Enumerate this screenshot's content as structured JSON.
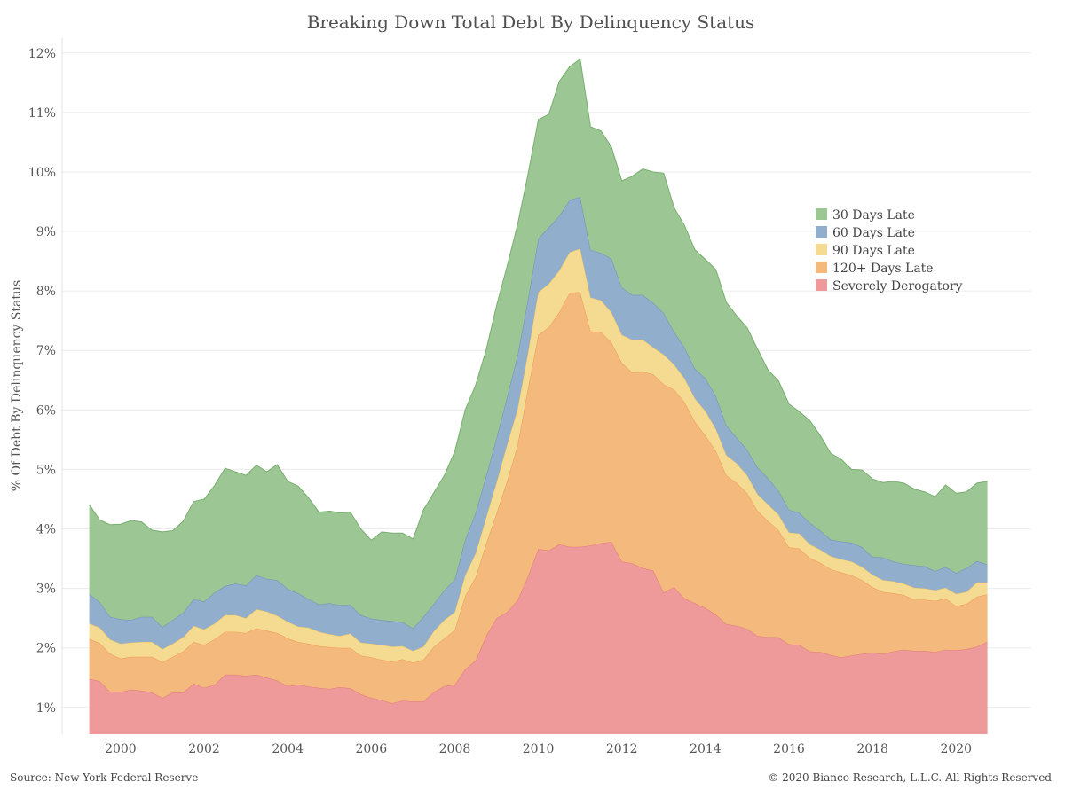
{
  "chart_data": {
    "type": "area",
    "stacked": true,
    "title": "Breaking Down Total Debt By Delinquency Status",
    "ylabel": "% Of Debt By Delinquency Status",
    "xlabel": "",
    "xlim": [
      1998.6,
      2021.8
    ],
    "ylim": [
      0.55,
      12.25
    ],
    "x_ticks": [
      2000,
      2002,
      2004,
      2006,
      2008,
      2010,
      2012,
      2014,
      2016,
      2018,
      2020
    ],
    "x_tick_labels": [
      "2000",
      "2002",
      "2004",
      "2006",
      "2008",
      "2010",
      "2012",
      "2014",
      "2016",
      "2018",
      "2020"
    ],
    "y_ticks": [
      1,
      2,
      3,
      4,
      5,
      6,
      7,
      8,
      9,
      10,
      11,
      12
    ],
    "y_tick_labels": [
      "1%",
      "2%",
      "3%",
      "4%",
      "5%",
      "6%",
      "7%",
      "8%",
      "9%",
      "10%",
      "11%",
      "12%"
    ],
    "grid": "horizontal",
    "legend_position": "right",
    "x": [
      1999.25,
      1999.5,
      1999.75,
      2000.0,
      2000.25,
      2000.5,
      2000.75,
      2001.0,
      2001.25,
      2001.5,
      2001.75,
      2002.0,
      2002.25,
      2002.5,
      2002.75,
      2003.0,
      2003.25,
      2003.5,
      2003.75,
      2004.0,
      2004.25,
      2004.5,
      2004.75,
      2005.0,
      2005.25,
      2005.5,
      2005.75,
      2006.0,
      2006.25,
      2006.5,
      2006.75,
      2007.0,
      2007.25,
      2007.5,
      2007.75,
      2008.0,
      2008.25,
      2008.5,
      2008.75,
      2009.0,
      2009.25,
      2009.5,
      2009.75,
      2010.0,
      2010.25,
      2010.5,
      2010.75,
      2011.0,
      2011.25,
      2011.5,
      2011.75,
      2012.0,
      2012.25,
      2012.5,
      2012.75,
      2013.0,
      2013.25,
      2013.5,
      2013.75,
      2014.0,
      2014.25,
      2014.5,
      2014.75,
      2015.0,
      2015.25,
      2015.5,
      2015.75,
      2016.0,
      2016.25,
      2016.5,
      2016.75,
      2017.0,
      2017.25,
      2017.5,
      2017.75,
      2018.0,
      2018.25,
      2018.5,
      2018.75,
      2019.0,
      2019.25,
      2019.5,
      2019.75,
      2020.0,
      2020.25,
      2020.5,
      2020.75
    ],
    "series": [
      {
        "name": "Severely Derogatory",
        "color": "#ee9a9b",
        "line": "#e07a7c",
        "values": [
          1.48,
          1.44,
          1.26,
          1.26,
          1.3,
          1.28,
          1.25,
          1.16,
          1.25,
          1.25,
          1.4,
          1.33,
          1.38,
          1.55,
          1.55,
          1.53,
          1.55,
          1.5,
          1.45,
          1.36,
          1.38,
          1.35,
          1.33,
          1.31,
          1.34,
          1.32,
          1.22,
          1.16,
          1.12,
          1.07,
          1.11,
          1.1,
          1.1,
          1.26,
          1.36,
          1.38,
          1.64,
          1.79,
          2.2,
          2.5,
          2.6,
          2.8,
          3.2,
          3.66,
          3.64,
          3.74,
          3.7,
          3.7,
          3.72,
          3.76,
          3.78,
          3.45,
          3.42,
          3.34,
          3.3,
          2.93,
          3.02,
          2.83,
          2.75,
          2.67,
          2.56,
          2.4,
          2.37,
          2.32,
          2.2,
          2.18,
          2.18,
          2.06,
          2.05,
          1.94,
          1.93,
          1.88,
          1.84,
          1.87,
          1.9,
          1.92,
          1.9,
          1.94,
          1.97,
          1.95,
          1.95,
          1.93,
          1.97,
          1.96,
          1.98,
          2.02,
          2.1
        ]
      },
      {
        "name": "120+ Days Late",
        "color": "#f4b97c",
        "line": "#ee9a50",
        "values": [
          0.67,
          0.64,
          0.64,
          0.56,
          0.55,
          0.57,
          0.6,
          0.6,
          0.6,
          0.69,
          0.7,
          0.72,
          0.76,
          0.72,
          0.72,
          0.72,
          0.78,
          0.79,
          0.8,
          0.8,
          0.72,
          0.72,
          0.7,
          0.7,
          0.66,
          0.68,
          0.65,
          0.68,
          0.68,
          0.7,
          0.7,
          0.65,
          0.7,
          0.76,
          0.8,
          0.92,
          1.23,
          1.4,
          1.55,
          1.76,
          2.2,
          2.6,
          3.15,
          3.6,
          3.75,
          3.9,
          4.27,
          4.28,
          3.6,
          3.55,
          3.35,
          3.34,
          3.21,
          3.3,
          3.3,
          3.5,
          3.32,
          3.3,
          3.05,
          2.9,
          2.75,
          2.5,
          2.4,
          2.28,
          2.1,
          1.95,
          1.8,
          1.63,
          1.62,
          1.57,
          1.5,
          1.44,
          1.43,
          1.35,
          1.24,
          1.1,
          1.04,
          0.98,
          0.92,
          0.86,
          0.86,
          0.86,
          0.86,
          0.74,
          0.76,
          0.84,
          0.8
        ]
      },
      {
        "name": "90 Days Late",
        "color": "#f5db92",
        "line": "#efc65e",
        "values": [
          0.26,
          0.26,
          0.24,
          0.25,
          0.24,
          0.25,
          0.25,
          0.22,
          0.22,
          0.24,
          0.27,
          0.26,
          0.27,
          0.28,
          0.28,
          0.25,
          0.32,
          0.32,
          0.29,
          0.28,
          0.26,
          0.27,
          0.24,
          0.22,
          0.2,
          0.24,
          0.22,
          0.23,
          0.25,
          0.25,
          0.22,
          0.2,
          0.22,
          0.26,
          0.31,
          0.3,
          0.35,
          0.4,
          0.44,
          0.52,
          0.61,
          0.61,
          0.6,
          0.72,
          0.73,
          0.7,
          0.68,
          0.73,
          0.57,
          0.53,
          0.51,
          0.47,
          0.55,
          0.54,
          0.45,
          0.5,
          0.42,
          0.4,
          0.39,
          0.41,
          0.37,
          0.34,
          0.33,
          0.3,
          0.28,
          0.28,
          0.26,
          0.25,
          0.25,
          0.23,
          0.22,
          0.22,
          0.22,
          0.23,
          0.22,
          0.21,
          0.2,
          0.2,
          0.19,
          0.2,
          0.19,
          0.18,
          0.18,
          0.21,
          0.2,
          0.24,
          0.2
        ]
      },
      {
        "name": "60 Days Late",
        "color": "#92aecd",
        "line": "#6f8fb6",
        "values": [
          0.5,
          0.43,
          0.38,
          0.41,
          0.38,
          0.42,
          0.42,
          0.37,
          0.4,
          0.41,
          0.45,
          0.47,
          0.52,
          0.49,
          0.53,
          0.55,
          0.57,
          0.55,
          0.6,
          0.55,
          0.56,
          0.48,
          0.46,
          0.52,
          0.52,
          0.48,
          0.46,
          0.42,
          0.42,
          0.43,
          0.4,
          0.38,
          0.5,
          0.46,
          0.5,
          0.55,
          0.6,
          0.68,
          0.7,
          0.75,
          0.8,
          0.9,
          0.9,
          0.9,
          0.95,
          0.92,
          0.88,
          0.87,
          0.8,
          0.8,
          0.9,
          0.8,
          0.75,
          0.75,
          0.75,
          0.7,
          0.55,
          0.52,
          0.5,
          0.55,
          0.55,
          0.5,
          0.43,
          0.43,
          0.45,
          0.44,
          0.4,
          0.38,
          0.35,
          0.36,
          0.32,
          0.28,
          0.3,
          0.32,
          0.33,
          0.3,
          0.38,
          0.33,
          0.33,
          0.38,
          0.37,
          0.32,
          0.35,
          0.35,
          0.4,
          0.36,
          0.3
        ]
      },
      {
        "name": "30 Days Late",
        "color": "#9cc794",
        "line": "#78ae6f",
        "values": [
          1.5,
          1.38,
          1.55,
          1.6,
          1.67,
          1.6,
          1.46,
          1.6,
          1.5,
          1.54,
          1.64,
          1.72,
          1.8,
          1.98,
          1.88,
          1.85,
          1.85,
          1.8,
          1.94,
          1.81,
          1.8,
          1.7,
          1.55,
          1.55,
          1.55,
          1.56,
          1.45,
          1.32,
          1.48,
          1.48,
          1.5,
          1.5,
          1.8,
          1.87,
          1.93,
          2.15,
          2.18,
          2.15,
          2.12,
          2.22,
          2.2,
          2.2,
          2.1,
          2.0,
          1.9,
          2.26,
          2.24,
          2.32,
          2.07,
          2.05,
          1.88,
          1.79,
          2.0,
          2.12,
          2.2,
          2.35,
          2.09,
          2.05,
          2.0,
          2.0,
          2.13,
          2.07,
          2.05,
          2.05,
          1.99,
          1.82,
          1.85,
          1.78,
          1.7,
          1.72,
          1.6,
          1.45,
          1.38,
          1.23,
          1.3,
          1.31,
          1.26,
          1.35,
          1.36,
          1.28,
          1.25,
          1.25,
          1.38,
          1.34,
          1.28,
          1.31,
          1.4
        ]
      }
    ]
  },
  "footer": {
    "source": "Source: New York Federal Reserve",
    "copyright": "© 2020 Bianco Research, L.L.C. All Rights Reserved"
  },
  "legend": [
    "30 Days Late",
    "60 Days Late",
    "90 Days Late",
    "120+ Days Late",
    "Severely Derogatory"
  ]
}
